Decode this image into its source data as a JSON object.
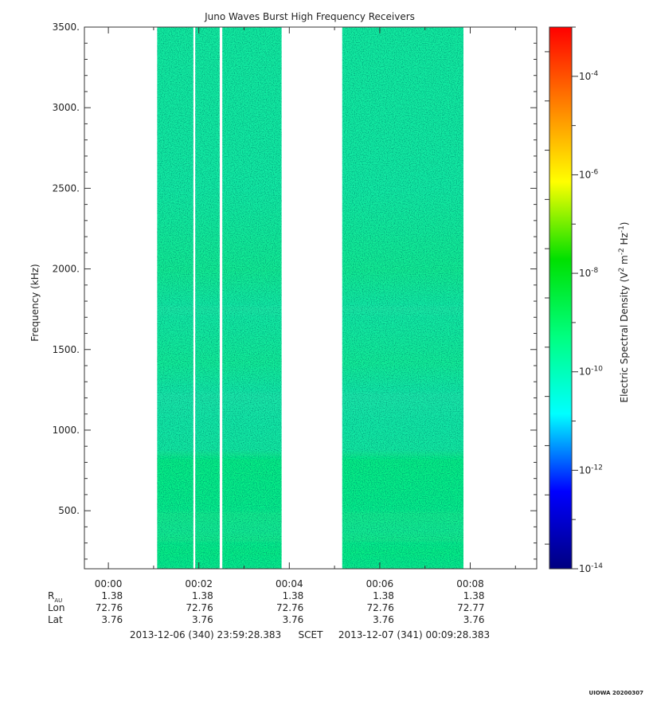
{
  "chart_data": {
    "type": "heatmap",
    "title": "Juno Waves Burst High Frequency Receivers",
    "xlabel": "",
    "ylabel": "Frequency (kHz)",
    "ylim": [
      140,
      3500
    ],
    "y_ticks": [
      500,
      1000,
      1500,
      2000,
      2500,
      3000,
      3500
    ],
    "y_tick_labels": [
      "500.",
      "1000.",
      "1500.",
      "2000.",
      "2500.",
      "3000.",
      "3500."
    ],
    "x_range_min": [
      -0.53,
      9.47
    ],
    "x_ticks_min": [
      0,
      2,
      4,
      6,
      8
    ],
    "x_tick_labels": [
      "00:00",
      "00:02",
      "00:04",
      "00:06",
      "00:08"
    ],
    "data_blocks_min": [
      {
        "start": 1.08,
        "end": 1.88
      },
      {
        "start": 1.92,
        "end": 2.46
      },
      {
        "start": 2.52,
        "end": 3.83
      },
      {
        "start": 5.17,
        "end": 7.85
      }
    ],
    "typical_density": "10^-10 to 10^-9 V^2 m^-2 Hz^-1",
    "colorbar": {
      "label": "Electric Spectral Density (V2 m-2 Hz-1)",
      "label_parts": {
        "base": "Electric Spectral Density (V",
        "sup1": "2",
        "mid1": " m",
        "sup2": "-2",
        "mid2": " Hz",
        "sup3": "-1",
        "end": ")"
      },
      "scale": "log",
      "range_exp": [
        -14,
        -3
      ],
      "tick_labels": [
        {
          "base": "10",
          "exp": "-14"
        },
        {
          "base": "10",
          "exp": "-12"
        },
        {
          "base": "10",
          "exp": "-10"
        },
        {
          "base": "10",
          "exp": "-8"
        },
        {
          "base": "10",
          "exp": "-6"
        },
        {
          "base": "10",
          "exp": "-4"
        }
      ],
      "tick_values_exp": [
        -14,
        -12,
        -10,
        -8,
        -6,
        -4
      ],
      "colors": [
        "#000080",
        "#0000ff",
        "#00ffff",
        "#00ff80",
        "#00e000",
        "#ffff00",
        "#ff8000",
        "#ff0000"
      ]
    },
    "ephemeris": {
      "rows": [
        {
          "label": "R",
          "sub": "AU",
          "values": [
            "1.38",
            "1.38",
            "1.38",
            "1.38",
            "1.38"
          ]
        },
        {
          "label": "Lon",
          "sub": "",
          "values": [
            "72.76",
            "72.76",
            "72.76",
            "72.76",
            "72.77"
          ]
        },
        {
          "label": "Lat",
          "sub": "",
          "values": [
            "3.76",
            "3.76",
            "3.76",
            "3.76",
            "3.76"
          ]
        }
      ]
    },
    "time_range": {
      "start": "2013-12-06 (340) 23:59:28.383",
      "scet": "SCET",
      "end": "2013-12-07 (341) 00:09:28.383"
    },
    "footer_tag": "UIOWA 20200307"
  }
}
